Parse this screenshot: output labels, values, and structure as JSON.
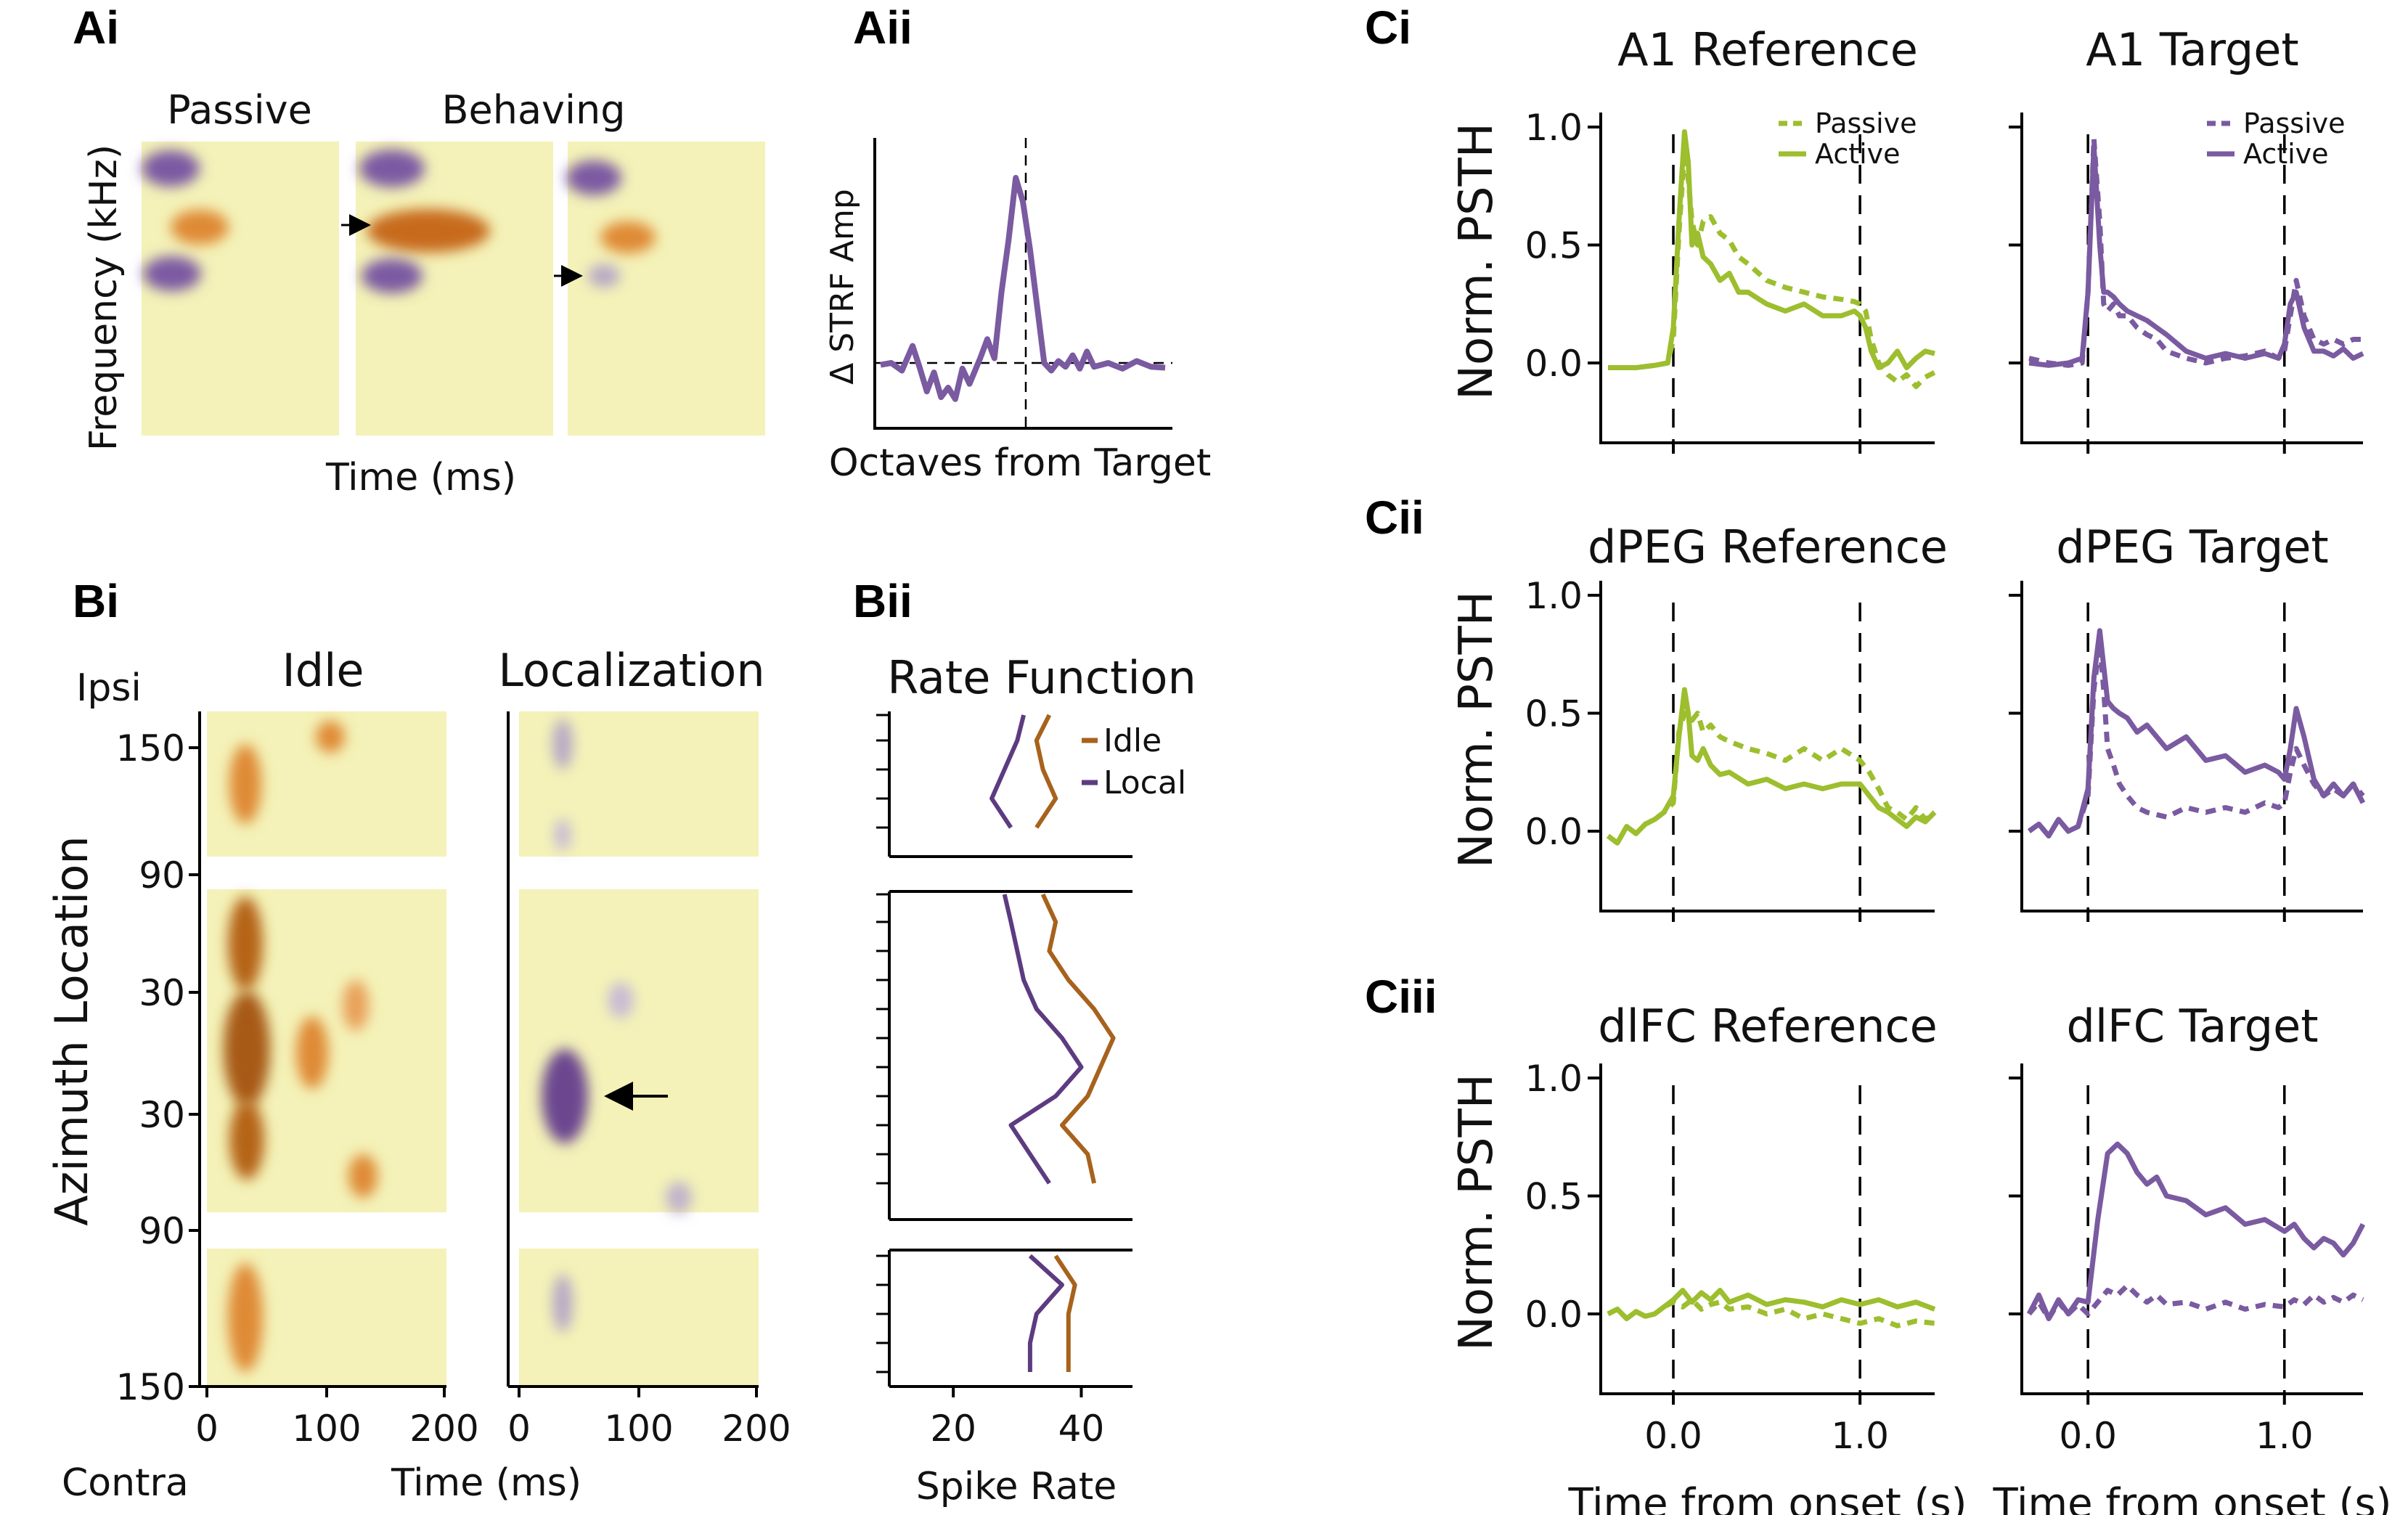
{
  "colors": {
    "green": "#9dbe2e",
    "purple": "#7a5aa0",
    "orange": "#a7621c",
    "yellow_bg": "#f4f2b8",
    "blob_orange": "#df8a36",
    "blob_purple": "#7c5aa3"
  },
  "panel_labels": {
    "ai": "Ai",
    "aii": "Aii",
    "bi": "Bi",
    "bii": "Bii",
    "ci": "Ci",
    "cii": "Cii",
    "ciii": "Ciii"
  },
  "panel_ai": {
    "passive": "Passive",
    "behaving": "Behaving",
    "ylabel": "Frequency (kHz)",
    "xlabel": "Time (ms)"
  },
  "panel_aii": {
    "ylabel": "Δ STRF Amp",
    "xlabel": "Octaves from Target"
  },
  "panel_bi": {
    "ipsi": "Ipsi",
    "contra": "Contra",
    "idle": "Idle",
    "localization": "Localization",
    "ylabel": "Azimuth Location",
    "xlabel": "Time (ms)",
    "yticks": [
      "150",
      "90",
      "30",
      "30",
      "90",
      "150"
    ],
    "xticks_left": [
      "0",
      "100",
      "200"
    ],
    "xticks_right": [
      "0",
      "100",
      "200"
    ]
  },
  "chart_data": [
    {
      "id": "aii",
      "type": "line",
      "title": "",
      "xlabel": "Octaves from Target",
      "ylabel": "Δ STRF Amp",
      "ylim": [
        -0.5,
        2.0
      ],
      "x": [
        -2.0,
        -1.85,
        -1.7,
        -1.55,
        -1.45,
        -1.35,
        -1.25,
        -1.15,
        -1.05,
        -0.95,
        -0.85,
        -0.75,
        -0.6,
        -0.5,
        -0.4,
        -0.3,
        -0.2,
        -0.1,
        0.0,
        0.1,
        0.2,
        0.3,
        0.4,
        0.5,
        0.6,
        0.7,
        0.8,
        0.9,
        1.0,
        1.2,
        1.4,
        1.6,
        1.8,
        2.0
      ],
      "series": [
        {
          "name": "Δ STRF",
          "values": [
            -0.02,
            0.0,
            -0.08,
            0.18,
            -0.05,
            -0.3,
            -0.1,
            -0.36,
            -0.26,
            -0.38,
            -0.06,
            -0.22,
            0.05,
            0.25,
            0.05,
            0.75,
            1.3,
            1.95,
            1.7,
            1.2,
            0.6,
            0.0,
            -0.08,
            0.02,
            -0.04,
            0.08,
            -0.06,
            0.12,
            -0.04,
            0.0,
            -0.06,
            0.02,
            -0.04,
            -0.05
          ]
        }
      ]
    },
    {
      "id": "bii",
      "type": "line",
      "title": "Rate Function",
      "xlabel": "Spike Rate",
      "xticks": [
        "20",
        "40"
      ],
      "xlim": [
        10,
        48
      ],
      "ylabel": "Azimuth Location",
      "segments": [
        [
          0,
          4
        ],
        [
          5,
          15
        ],
        [
          16,
          20
        ]
      ],
      "series": [
        {
          "name": "Idle",
          "color": "#a7621c",
          "x": [
            35,
            33,
            34,
            36,
            33,
            34,
            36,
            35,
            38,
            42,
            45,
            43,
            41,
            37,
            41,
            42,
            36,
            39,
            38,
            38,
            38
          ],
          "y_index": [
            0,
            1,
            2,
            3,
            4,
            5,
            6,
            7,
            8,
            9,
            10,
            11,
            12,
            13,
            14,
            15,
            16,
            17,
            18,
            19,
            20
          ]
        },
        {
          "name": "Local",
          "color": "#5d3b80",
          "x": [
            31,
            30,
            28,
            26,
            29,
            28,
            29,
            30,
            31,
            33,
            37,
            40,
            36,
            29,
            32,
            35,
            32,
            37,
            33,
            32,
            32
          ],
          "y_index": [
            0,
            1,
            2,
            3,
            4,
            5,
            6,
            7,
            8,
            9,
            10,
            11,
            12,
            13,
            14,
            15,
            16,
            17,
            18,
            19,
            20
          ]
        }
      ]
    },
    {
      "id": "ci_ref",
      "type": "line",
      "title": "A1 Reference",
      "ylabel": "Norm. PSTH",
      "xlim": [
        -0.35,
        1.4
      ],
      "ylim": [
        -0.3,
        1.05
      ],
      "yticks": [
        "0.0",
        "0.5",
        "1.0"
      ],
      "xticks": [],
      "vlines": [
        0,
        1
      ],
      "legend": [
        "Passive",
        "Active"
      ],
      "color": "#9dbe2e",
      "x": [
        -0.35,
        -0.2,
        -0.1,
        -0.03,
        0.0,
        0.03,
        0.06,
        0.08,
        0.1,
        0.13,
        0.16,
        0.2,
        0.25,
        0.3,
        0.35,
        0.4,
        0.5,
        0.6,
        0.7,
        0.8,
        0.9,
        0.97,
        1.0,
        1.03,
        1.06,
        1.1,
        1.15,
        1.2,
        1.25,
        1.3,
        1.35,
        1.4
      ],
      "series": [
        {
          "name": "Passive",
          "dashed": true,
          "values": [
            -0.02,
            -0.02,
            -0.01,
            0.0,
            0.1,
            0.55,
            0.9,
            0.78,
            0.6,
            0.5,
            0.6,
            0.62,
            0.55,
            0.52,
            0.45,
            0.42,
            0.35,
            0.32,
            0.3,
            0.28,
            0.27,
            0.26,
            0.25,
            0.22,
            0.1,
            0.0,
            -0.05,
            -0.08,
            -0.05,
            -0.1,
            -0.06,
            -0.04
          ]
        },
        {
          "name": "Active",
          "dashed": false,
          "values": [
            -0.02,
            -0.02,
            -0.01,
            0.0,
            0.15,
            0.6,
            0.98,
            0.85,
            0.5,
            0.55,
            0.45,
            0.42,
            0.35,
            0.38,
            0.3,
            0.3,
            0.25,
            0.22,
            0.25,
            0.2,
            0.2,
            0.22,
            0.2,
            0.15,
            0.05,
            -0.02,
            0.0,
            0.05,
            -0.02,
            0.02,
            0.05,
            0.04
          ]
        }
      ]
    },
    {
      "id": "ci_tgt",
      "type": "line",
      "title": "A1 Target",
      "ylabel": "",
      "xlim": [
        -0.3,
        1.4
      ],
      "ylim": [
        -0.3,
        1.05
      ],
      "yticks": [],
      "xticks": [],
      "vlines": [
        0,
        1
      ],
      "legend": [
        "Passive",
        "Active"
      ],
      "color": "#7a5aa0",
      "x": [
        -0.3,
        -0.2,
        -0.1,
        -0.03,
        0.0,
        0.03,
        0.06,
        0.08,
        0.1,
        0.13,
        0.16,
        0.2,
        0.25,
        0.3,
        0.35,
        0.4,
        0.5,
        0.6,
        0.7,
        0.8,
        0.9,
        0.97,
        1.0,
        1.03,
        1.06,
        1.1,
        1.15,
        1.2,
        1.25,
        1.3,
        1.35,
        1.4
      ],
      "series": [
        {
          "name": "Passive",
          "dashed": true,
          "values": [
            0.02,
            0.0,
            -0.01,
            0.0,
            0.3,
            0.95,
            0.6,
            0.25,
            0.22,
            0.25,
            0.2,
            0.2,
            0.15,
            0.12,
            0.1,
            0.05,
            0.02,
            0.0,
            0.02,
            0.03,
            0.05,
            0.02,
            0.05,
            0.2,
            0.35,
            0.2,
            0.1,
            0.08,
            0.1,
            0.08,
            0.1,
            0.1
          ]
        },
        {
          "name": "Active",
          "dashed": false,
          "values": [
            0.0,
            -0.01,
            0.0,
            0.02,
            0.3,
            0.92,
            0.5,
            0.3,
            0.3,
            0.28,
            0.25,
            0.22,
            0.2,
            0.18,
            0.15,
            0.12,
            0.05,
            0.02,
            0.04,
            0.02,
            0.04,
            0.02,
            0.08,
            0.25,
            0.3,
            0.15,
            0.05,
            0.05,
            0.03,
            0.06,
            0.02,
            0.04
          ]
        }
      ]
    },
    {
      "id": "cii_ref",
      "type": "line",
      "title": "dPEG Reference",
      "ylabel": "Norm. PSTH",
      "xlim": [
        -0.35,
        1.4
      ],
      "ylim": [
        -0.3,
        1.05
      ],
      "yticks": [
        "0.0",
        "0.5",
        "1.0"
      ],
      "xticks": [],
      "vlines": [
        0,
        1
      ],
      "color": "#9dbe2e",
      "x": [
        -0.35,
        -0.3,
        -0.25,
        -0.2,
        -0.15,
        -0.1,
        -0.05,
        0.0,
        0.03,
        0.06,
        0.08,
        0.1,
        0.13,
        0.16,
        0.2,
        0.25,
        0.3,
        0.4,
        0.5,
        0.6,
        0.7,
        0.8,
        0.9,
        1.0,
        1.05,
        1.1,
        1.15,
        1.2,
        1.25,
        1.3,
        1.35,
        1.4
      ],
      "series": [
        {
          "name": "Passive",
          "dashed": true,
          "values": [
            -0.02,
            -0.05,
            0.02,
            -0.01,
            0.03,
            0.05,
            0.08,
            0.12,
            0.42,
            0.5,
            0.48,
            0.47,
            0.5,
            0.42,
            0.45,
            0.4,
            0.38,
            0.35,
            0.33,
            0.3,
            0.35,
            0.3,
            0.35,
            0.3,
            0.25,
            0.18,
            0.1,
            0.08,
            0.05,
            0.1,
            0.05,
            0.08
          ]
        },
        {
          "name": "Active",
          "dashed": false,
          "values": [
            -0.02,
            -0.05,
            0.02,
            -0.01,
            0.03,
            0.05,
            0.08,
            0.15,
            0.4,
            0.6,
            0.5,
            0.32,
            0.3,
            0.35,
            0.28,
            0.24,
            0.25,
            0.2,
            0.22,
            0.18,
            0.2,
            0.18,
            0.2,
            0.2,
            0.15,
            0.1,
            0.08,
            0.05,
            0.02,
            0.06,
            0.04,
            0.08
          ]
        }
      ]
    },
    {
      "id": "cii_tgt",
      "type": "line",
      "title": "dPEG Target",
      "ylabel": "",
      "xlim": [
        -0.3,
        1.4
      ],
      "ylim": [
        -0.3,
        1.05
      ],
      "yticks": [],
      "xticks": [],
      "vlines": [
        0,
        1
      ],
      "color": "#7a5aa0",
      "x": [
        -0.3,
        -0.25,
        -0.2,
        -0.15,
        -0.1,
        -0.05,
        0.0,
        0.03,
        0.06,
        0.08,
        0.1,
        0.13,
        0.16,
        0.2,
        0.25,
        0.3,
        0.4,
        0.5,
        0.6,
        0.7,
        0.8,
        0.9,
        0.97,
        1.0,
        1.03,
        1.06,
        1.1,
        1.15,
        1.2,
        1.25,
        1.3,
        1.35,
        1.4
      ],
      "series": [
        {
          "name": "Passive",
          "dashed": true,
          "values": [
            0.0,
            0.03,
            -0.02,
            0.05,
            0.0,
            0.02,
            0.15,
            0.6,
            0.8,
            0.6,
            0.35,
            0.28,
            0.2,
            0.15,
            0.1,
            0.08,
            0.06,
            0.1,
            0.08,
            0.1,
            0.08,
            0.12,
            0.1,
            0.12,
            0.25,
            0.35,
            0.28,
            0.2,
            0.15,
            0.18,
            0.15,
            0.2,
            0.15
          ]
        },
        {
          "name": "Active",
          "dashed": false,
          "values": [
            0.0,
            0.03,
            -0.02,
            0.05,
            0.0,
            0.02,
            0.18,
            0.65,
            0.85,
            0.7,
            0.55,
            0.52,
            0.5,
            0.48,
            0.42,
            0.45,
            0.35,
            0.4,
            0.3,
            0.32,
            0.25,
            0.28,
            0.25,
            0.22,
            0.35,
            0.52,
            0.4,
            0.22,
            0.15,
            0.2,
            0.15,
            0.2,
            0.12
          ]
        }
      ]
    },
    {
      "id": "ciii_ref",
      "type": "line",
      "title": "dlFC Reference",
      "ylabel": "Norm. PSTH",
      "xlim": [
        -0.35,
        1.4
      ],
      "ylim": [
        -0.3,
        1.05
      ],
      "yticks": [
        "0.0",
        "0.5",
        "1.0"
      ],
      "xticks": [
        "0.0",
        "1.0"
      ],
      "vlines": [
        0,
        1
      ],
      "xlabel": "Time from onset (s)",
      "color": "#9dbe2e",
      "x": [
        -0.35,
        -0.3,
        -0.25,
        -0.2,
        -0.15,
        -0.1,
        -0.05,
        0.0,
        0.05,
        0.1,
        0.15,
        0.2,
        0.25,
        0.3,
        0.4,
        0.5,
        0.6,
        0.7,
        0.8,
        0.9,
        1.0,
        1.1,
        1.2,
        1.3,
        1.4
      ],
      "series": [
        {
          "name": "Passive",
          "dashed": true,
          "values": [
            0.0,
            0.02,
            -0.02,
            0.01,
            -0.01,
            0.0,
            0.03,
            0.05,
            0.03,
            0.06,
            0.02,
            0.04,
            0.05,
            0.02,
            0.03,
            0.0,
            0.02,
            -0.02,
            0.0,
            -0.02,
            -0.04,
            -0.02,
            -0.05,
            -0.03,
            -0.04
          ]
        },
        {
          "name": "Active",
          "dashed": false,
          "values": [
            0.0,
            0.02,
            -0.02,
            0.01,
            -0.01,
            0.0,
            0.03,
            0.06,
            0.1,
            0.05,
            0.09,
            0.06,
            0.1,
            0.05,
            0.08,
            0.04,
            0.06,
            0.05,
            0.03,
            0.06,
            0.04,
            0.06,
            0.03,
            0.05,
            0.02
          ]
        }
      ]
    },
    {
      "id": "ciii_tgt",
      "type": "line",
      "title": "dlFC Target",
      "ylabel": "",
      "xlim": [
        -0.3,
        1.4
      ],
      "ylim": [
        -0.3,
        1.05
      ],
      "yticks": [],
      "xticks": [
        "0.0",
        "1.0"
      ],
      "vlines": [
        0,
        1
      ],
      "xlabel": "Time from onset (s)",
      "color": "#7a5aa0",
      "x": [
        -0.3,
        -0.25,
        -0.2,
        -0.15,
        -0.1,
        -0.05,
        0.0,
        0.05,
        0.1,
        0.15,
        0.2,
        0.25,
        0.3,
        0.35,
        0.4,
        0.5,
        0.6,
        0.7,
        0.8,
        0.9,
        1.0,
        1.05,
        1.1,
        1.15,
        1.2,
        1.25,
        1.3,
        1.35,
        1.4
      ],
      "series": [
        {
          "name": "Passive",
          "dashed": true,
          "values": [
            0.0,
            0.05,
            -0.02,
            0.05,
            0.0,
            0.04,
            0.0,
            0.05,
            0.1,
            0.08,
            0.12,
            0.08,
            0.05,
            0.08,
            0.04,
            0.05,
            0.02,
            0.05,
            0.02,
            0.04,
            0.03,
            0.06,
            0.04,
            0.08,
            0.05,
            0.07,
            0.05,
            0.08,
            0.06
          ]
        },
        {
          "name": "Active",
          "dashed": false,
          "values": [
            0.0,
            0.08,
            -0.02,
            0.06,
            0.0,
            0.06,
            0.05,
            0.4,
            0.68,
            0.72,
            0.68,
            0.6,
            0.55,
            0.58,
            0.5,
            0.48,
            0.42,
            0.45,
            0.38,
            0.4,
            0.35,
            0.38,
            0.32,
            0.28,
            0.32,
            0.3,
            0.25,
            0.3,
            0.38
          ]
        }
      ]
    }
  ]
}
